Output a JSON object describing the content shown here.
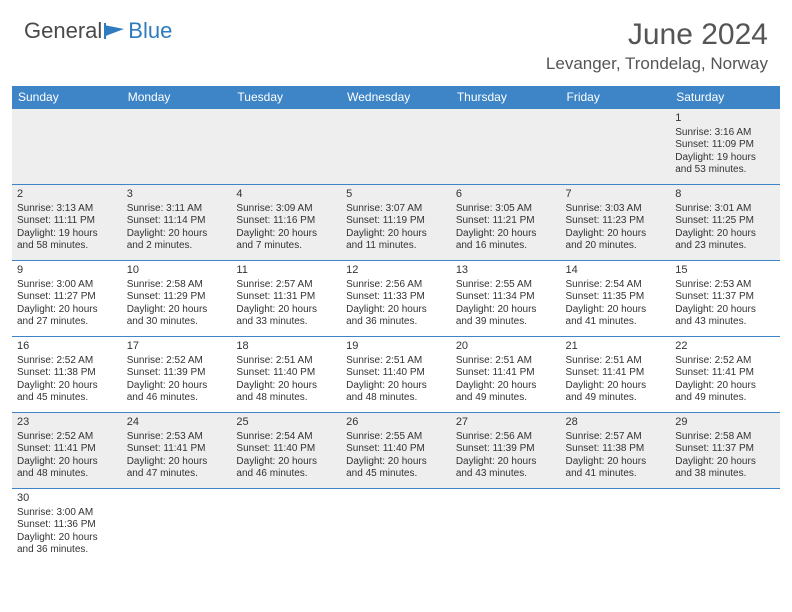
{
  "brand": {
    "part1": "General",
    "part2": "Blue",
    "logo_color": "#2f7bbf",
    "text_color": "#4a4a4a"
  },
  "header": {
    "month_title": "June 2024",
    "location": "Levanger, Trondelag, Norway"
  },
  "colors": {
    "header_bg": "#3d85c6",
    "header_fg": "#ffffff",
    "row_shade": "#eeeeee",
    "border": "#3d85c6"
  },
  "weekdays": [
    "Sunday",
    "Monday",
    "Tuesday",
    "Wednesday",
    "Thursday",
    "Friday",
    "Saturday"
  ],
  "weeks": [
    [
      null,
      null,
      null,
      null,
      null,
      null,
      {
        "n": "1",
        "sr": "Sunrise: 3:16 AM",
        "ss": "Sunset: 11:09 PM",
        "d1": "Daylight: 19 hours",
        "d2": "and 53 minutes."
      }
    ],
    [
      {
        "n": "2",
        "sr": "Sunrise: 3:13 AM",
        "ss": "Sunset: 11:11 PM",
        "d1": "Daylight: 19 hours",
        "d2": "and 58 minutes."
      },
      {
        "n": "3",
        "sr": "Sunrise: 3:11 AM",
        "ss": "Sunset: 11:14 PM",
        "d1": "Daylight: 20 hours",
        "d2": "and 2 minutes."
      },
      {
        "n": "4",
        "sr": "Sunrise: 3:09 AM",
        "ss": "Sunset: 11:16 PM",
        "d1": "Daylight: 20 hours",
        "d2": "and 7 minutes."
      },
      {
        "n": "5",
        "sr": "Sunrise: 3:07 AM",
        "ss": "Sunset: 11:19 PM",
        "d1": "Daylight: 20 hours",
        "d2": "and 11 minutes."
      },
      {
        "n": "6",
        "sr": "Sunrise: 3:05 AM",
        "ss": "Sunset: 11:21 PM",
        "d1": "Daylight: 20 hours",
        "d2": "and 16 minutes."
      },
      {
        "n": "7",
        "sr": "Sunrise: 3:03 AM",
        "ss": "Sunset: 11:23 PM",
        "d1": "Daylight: 20 hours",
        "d2": "and 20 minutes."
      },
      {
        "n": "8",
        "sr": "Sunrise: 3:01 AM",
        "ss": "Sunset: 11:25 PM",
        "d1": "Daylight: 20 hours",
        "d2": "and 23 minutes."
      }
    ],
    [
      {
        "n": "9",
        "sr": "Sunrise: 3:00 AM",
        "ss": "Sunset: 11:27 PM",
        "d1": "Daylight: 20 hours",
        "d2": "and 27 minutes."
      },
      {
        "n": "10",
        "sr": "Sunrise: 2:58 AM",
        "ss": "Sunset: 11:29 PM",
        "d1": "Daylight: 20 hours",
        "d2": "and 30 minutes."
      },
      {
        "n": "11",
        "sr": "Sunrise: 2:57 AM",
        "ss": "Sunset: 11:31 PM",
        "d1": "Daylight: 20 hours",
        "d2": "and 33 minutes."
      },
      {
        "n": "12",
        "sr": "Sunrise: 2:56 AM",
        "ss": "Sunset: 11:33 PM",
        "d1": "Daylight: 20 hours",
        "d2": "and 36 minutes."
      },
      {
        "n": "13",
        "sr": "Sunrise: 2:55 AM",
        "ss": "Sunset: 11:34 PM",
        "d1": "Daylight: 20 hours",
        "d2": "and 39 minutes."
      },
      {
        "n": "14",
        "sr": "Sunrise: 2:54 AM",
        "ss": "Sunset: 11:35 PM",
        "d1": "Daylight: 20 hours",
        "d2": "and 41 minutes."
      },
      {
        "n": "15",
        "sr": "Sunrise: 2:53 AM",
        "ss": "Sunset: 11:37 PM",
        "d1": "Daylight: 20 hours",
        "d2": "and 43 minutes."
      }
    ],
    [
      {
        "n": "16",
        "sr": "Sunrise: 2:52 AM",
        "ss": "Sunset: 11:38 PM",
        "d1": "Daylight: 20 hours",
        "d2": "and 45 minutes."
      },
      {
        "n": "17",
        "sr": "Sunrise: 2:52 AM",
        "ss": "Sunset: 11:39 PM",
        "d1": "Daylight: 20 hours",
        "d2": "and 46 minutes."
      },
      {
        "n": "18",
        "sr": "Sunrise: 2:51 AM",
        "ss": "Sunset: 11:40 PM",
        "d1": "Daylight: 20 hours",
        "d2": "and 48 minutes."
      },
      {
        "n": "19",
        "sr": "Sunrise: 2:51 AM",
        "ss": "Sunset: 11:40 PM",
        "d1": "Daylight: 20 hours",
        "d2": "and 48 minutes."
      },
      {
        "n": "20",
        "sr": "Sunrise: 2:51 AM",
        "ss": "Sunset: 11:41 PM",
        "d1": "Daylight: 20 hours",
        "d2": "and 49 minutes."
      },
      {
        "n": "21",
        "sr": "Sunrise: 2:51 AM",
        "ss": "Sunset: 11:41 PM",
        "d1": "Daylight: 20 hours",
        "d2": "and 49 minutes."
      },
      {
        "n": "22",
        "sr": "Sunrise: 2:52 AM",
        "ss": "Sunset: 11:41 PM",
        "d1": "Daylight: 20 hours",
        "d2": "and 49 minutes."
      }
    ],
    [
      {
        "n": "23",
        "sr": "Sunrise: 2:52 AM",
        "ss": "Sunset: 11:41 PM",
        "d1": "Daylight: 20 hours",
        "d2": "and 48 minutes."
      },
      {
        "n": "24",
        "sr": "Sunrise: 2:53 AM",
        "ss": "Sunset: 11:41 PM",
        "d1": "Daylight: 20 hours",
        "d2": "and 47 minutes."
      },
      {
        "n": "25",
        "sr": "Sunrise: 2:54 AM",
        "ss": "Sunset: 11:40 PM",
        "d1": "Daylight: 20 hours",
        "d2": "and 46 minutes."
      },
      {
        "n": "26",
        "sr": "Sunrise: 2:55 AM",
        "ss": "Sunset: 11:40 PM",
        "d1": "Daylight: 20 hours",
        "d2": "and 45 minutes."
      },
      {
        "n": "27",
        "sr": "Sunrise: 2:56 AM",
        "ss": "Sunset: 11:39 PM",
        "d1": "Daylight: 20 hours",
        "d2": "and 43 minutes."
      },
      {
        "n": "28",
        "sr": "Sunrise: 2:57 AM",
        "ss": "Sunset: 11:38 PM",
        "d1": "Daylight: 20 hours",
        "d2": "and 41 minutes."
      },
      {
        "n": "29",
        "sr": "Sunrise: 2:58 AM",
        "ss": "Sunset: 11:37 PM",
        "d1": "Daylight: 20 hours",
        "d2": "and 38 minutes."
      }
    ],
    [
      {
        "n": "30",
        "sr": "Sunrise: 3:00 AM",
        "ss": "Sunset: 11:36 PM",
        "d1": "Daylight: 20 hours",
        "d2": "and 36 minutes."
      },
      null,
      null,
      null,
      null,
      null,
      null
    ]
  ]
}
